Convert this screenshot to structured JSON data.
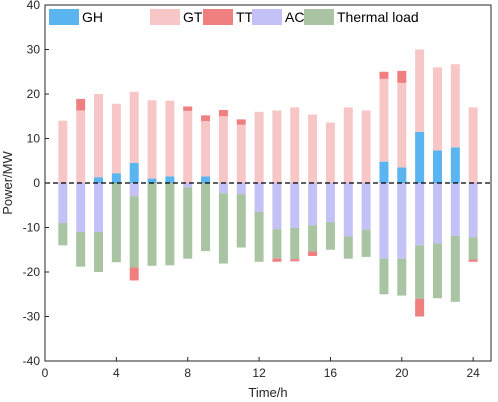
{
  "chart_data": {
    "type": "bar",
    "stacked": true,
    "xlabel": "Time/h",
    "ylabel": "Power/MW",
    "xlim": [
      0,
      25
    ],
    "ylim": [
      -40,
      40
    ],
    "x_ticks": [
      0,
      4,
      8,
      12,
      16,
      20,
      24
    ],
    "y_ticks": [
      -40,
      -30,
      -20,
      -10,
      0,
      10,
      20,
      30,
      40
    ],
    "grid": false,
    "box": true,
    "legend_position": "top",
    "x": [
      1,
      2,
      3,
      4,
      5,
      6,
      7,
      8,
      9,
      10,
      11,
      12,
      13,
      14,
      15,
      16,
      17,
      18,
      19,
      20,
      21,
      22,
      23,
      24
    ],
    "series": [
      {
        "name": "GH",
        "color": "#5ab4f0",
        "values": [
          0,
          0,
          1.3,
          2.2,
          4.5,
          1,
          1.5,
          0,
          1.5,
          0,
          0,
          0,
          0,
          0,
          0,
          0,
          0,
          0,
          4.8,
          3.5,
          11.5,
          7.3,
          8,
          0
        ]
      },
      {
        "name": "GT",
        "color": "#f7c7c7",
        "values": [
          14,
          16.3,
          18.7,
          15.6,
          16,
          17.6,
          17,
          16.2,
          12.4,
          15,
          13.1,
          16,
          16.3,
          17,
          15.4,
          13.6,
          17,
          16.3,
          18.6,
          19,
          18.5,
          18.7,
          18.7,
          17
        ]
      },
      {
        "name": "TT",
        "color": "#f08080",
        "values": [
          0,
          2.6,
          0,
          0,
          0,
          0,
          0,
          1,
          1.3,
          1.4,
          1.2,
          0,
          0,
          0,
          0,
          0,
          0,
          0,
          1.6,
          2.7,
          0,
          0,
          0,
          0
        ]
      },
      {
        "name": "AC",
        "color": "#c3c1f6",
        "values": [
          -9,
          -11,
          -11,
          0,
          -3,
          0,
          0,
          -1,
          0,
          -2.3,
          -2.5,
          -6.5,
          -10.4,
          -10.1,
          -9.5,
          -8.8,
          -12,
          -10.5,
          -17,
          -17,
          -14,
          -13.6,
          -11.9,
          -12.2
        ]
      },
      {
        "name": "Thermal load",
        "color": "#a8c4a2",
        "values": [
          -5,
          -7.8,
          -9,
          -17.8,
          -16,
          -18.6,
          -18.5,
          -16,
          -15.3,
          -15.8,
          -12,
          -11.2,
          -6.6,
          -7,
          -5.9,
          -6.2,
          -5,
          -6.1,
          -8,
          -8.3,
          -12,
          -12.3,
          -14.8,
          -5
        ]
      },
      {
        "name": "TT_neg",
        "color": "#f08080",
        "values": [
          0,
          0,
          0,
          0,
          -2.9,
          0,
          0,
          0,
          0,
          0,
          0,
          0,
          -0.7,
          -0.5,
          -1,
          0,
          0,
          0,
          0,
          0,
          -4,
          0,
          0,
          -0.5
        ]
      }
    ]
  },
  "legend": [
    {
      "label": "GH",
      "color": "#5ab4f0"
    },
    {
      "label": "GT",
      "color": "#f7c7c7"
    },
    {
      "label": "TT",
      "color": "#f08080"
    },
    {
      "label": "AC",
      "color": "#c3c1f6"
    },
    {
      "label": "Thermal load",
      "color": "#a8c4a2"
    }
  ]
}
